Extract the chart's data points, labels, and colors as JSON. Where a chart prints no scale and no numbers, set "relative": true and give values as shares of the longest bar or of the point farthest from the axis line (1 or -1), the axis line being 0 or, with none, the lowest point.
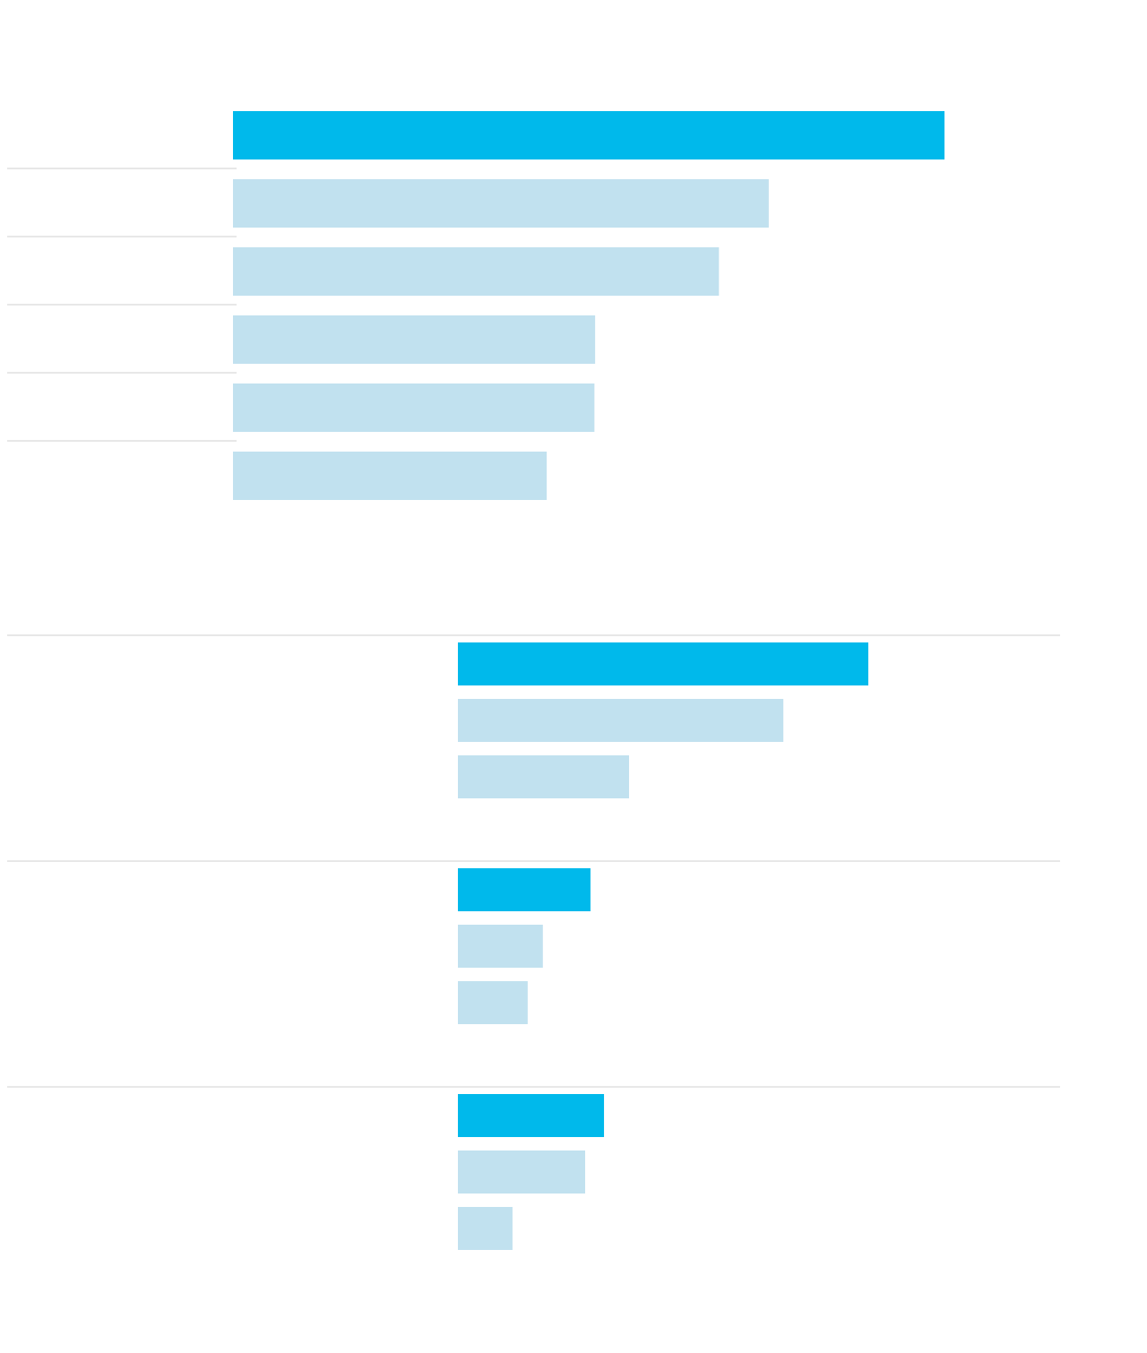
{
  "chart_data": [
    {
      "type": "bar",
      "orientation": "horizontal",
      "relative": true,
      "categories": [
        null,
        null,
        null,
        null,
        null,
        null
      ],
      "values": [
        1,
        0.753,
        0.683,
        0.509,
        0.508,
        0.441
      ],
      "colors": [
        "#00b9eb",
        "#c1e1ef",
        "#c1e1ef",
        "#c1e1ef",
        "#c1e1ef",
        "#c1e1ef"
      ]
    },
    {
      "type": "bar",
      "orientation": "horizontal",
      "relative": true,
      "categories": [
        null,
        null,
        null,
        null,
        null,
        null,
        null,
        null,
        null
      ],
      "values": [
        1,
        0.793,
        0.417,
        0.323,
        0.207,
        0.17,
        0.356,
        0.31,
        0.133
      ],
      "colors": [
        "#00b9eb",
        "#c1e1ef",
        "#c1e1ef",
        "#00b9eb",
        "#c1e1ef",
        "#c1e1ef",
        "#00b9eb",
        "#c1e1ef",
        "#c1e1ef"
      ]
    }
  ]
}
